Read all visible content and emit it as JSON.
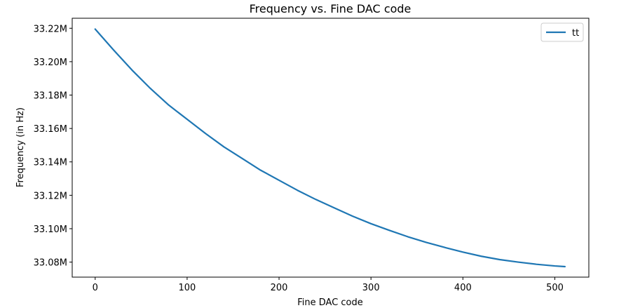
{
  "chart_data": {
    "type": "line",
    "title": "Frequency vs. Fine DAC code",
    "xlabel": "Fine DAC code",
    "ylabel": "Frequency (in Hz)",
    "xlim": [
      -25,
      537
    ],
    "ylim": [
      33071000,
      33226000
    ],
    "xticks": [
      0,
      100,
      200,
      300,
      400,
      500
    ],
    "xtick_labels": [
      "0",
      "100",
      "200",
      "300",
      "400",
      "500"
    ],
    "yticks": [
      33080000,
      33100000,
      33120000,
      33140000,
      33160000,
      33180000,
      33200000,
      33220000
    ],
    "ytick_labels": [
      "33.08M",
      "33.10M",
      "33.12M",
      "33.14M",
      "33.16M",
      "33.18M",
      "33.20M",
      "33.22M"
    ],
    "grid": false,
    "legend_position": "top-right",
    "series": [
      {
        "name": "tt",
        "color": "#1f77b4",
        "x": [
          0,
          20,
          40,
          60,
          80,
          100,
          120,
          140,
          160,
          180,
          200,
          220,
          240,
          260,
          280,
          300,
          320,
          340,
          360,
          380,
          400,
          420,
          440,
          460,
          480,
          500,
          511
        ],
        "y": [
          33219500,
          33207000,
          33195000,
          33184000,
          33174000,
          33165500,
          33157000,
          33149000,
          33142000,
          33135000,
          33129000,
          33123000,
          33117500,
          33112500,
          33107500,
          33103000,
          33099000,
          33095200,
          33091800,
          33088800,
          33086000,
          33083500,
          33081500,
          33080000,
          33078700,
          33077700,
          33077300
        ]
      }
    ]
  }
}
